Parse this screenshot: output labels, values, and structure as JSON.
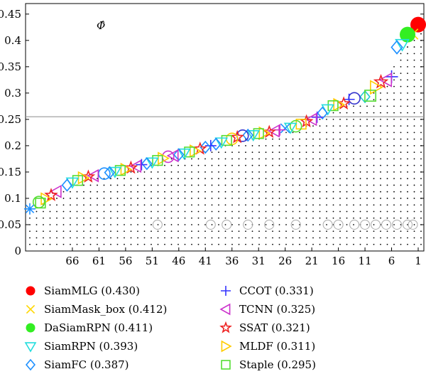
{
  "chart_data": {
    "type": "scatter",
    "title": "",
    "xlabel": "",
    "ylabel": "",
    "annotation": "Φ̂",
    "ylim": [
      0,
      0.47
    ],
    "xlim": [
      1,
      74
    ],
    "x_reversed": true,
    "y_ticks": [
      "0",
      "0.05",
      "0.1",
      "0.15",
      "0.2",
      "0.25",
      "0.3",
      "0.35",
      "0.4",
      "0.45"
    ],
    "x_ticks": [
      "66",
      "61",
      "56",
      "51",
      "46",
      "41",
      "36",
      "31",
      "26",
      "21",
      "16",
      "11",
      "6",
      "1"
    ],
    "average_line": 0.255,
    "series": [
      {
        "name": "SiamMLG (0.430)",
        "marker": "circle-filled",
        "color": "#ff0000",
        "points": [
          [
            1,
            0.43
          ]
        ]
      },
      {
        "name": "SiamMask_box (0.412)",
        "marker": "x",
        "color": "#ffd700",
        "points": [
          [
            2,
            0.412
          ]
        ]
      },
      {
        "name": "DaSiamRPN (0.411)",
        "marker": "circle-filled",
        "color": "#33ee22",
        "points": [
          [
            3,
            0.411
          ]
        ]
      },
      {
        "name": "SiamRPN (0.393)",
        "marker": "triangle-down",
        "color": "#22dddd",
        "points": [
          [
            4,
            0.393
          ]
        ]
      },
      {
        "name": "SiamFC (0.387)",
        "marker": "diamond",
        "color": "#1e90ff",
        "points": [
          [
            5,
            0.387
          ]
        ]
      },
      {
        "name": "CCOT (0.331)",
        "marker": "plus",
        "color": "#3333ff",
        "points": [
          [
            6,
            0.331
          ]
        ]
      },
      {
        "name": "TCNN (0.325)",
        "marker": "triangle-left",
        "color": "#cc33cc",
        "points": [
          [
            7,
            0.325
          ]
        ]
      },
      {
        "name": "SSAT (0.321)",
        "marker": "star",
        "color": "#ee2222",
        "points": [
          [
            8,
            0.321
          ]
        ]
      },
      {
        "name": "MLDF (0.311)",
        "marker": "triangle-right",
        "color": "#ffcc00",
        "points": [
          [
            9,
            0.311
          ]
        ]
      },
      {
        "name": "Staple (0.295)",
        "marker": "square",
        "color": "#55dd33",
        "points": [
          [
            10,
            0.295
          ]
        ]
      }
    ],
    "others": [
      {
        "x": 11,
        "y": 0.293,
        "m": "diamond",
        "c": "#22cccc"
      },
      {
        "x": 13,
        "y": 0.29,
        "m": "circle",
        "c": "#3333cc"
      },
      {
        "x": 14,
        "y": 0.288,
        "m": "plus",
        "c": "#3333ff"
      },
      {
        "x": 15,
        "y": 0.28,
        "m": "star",
        "c": "#ee2222"
      },
      {
        "x": 16,
        "y": 0.278,
        "m": "triangle-right",
        "c": "#ffcc00"
      },
      {
        "x": 17,
        "y": 0.276,
        "m": "square",
        "c": "#55dd33"
      },
      {
        "x": 18,
        "y": 0.27,
        "m": "triangle-down",
        "c": "#22dddd"
      },
      {
        "x": 19,
        "y": 0.262,
        "m": "diamond",
        "c": "#1e90ff"
      },
      {
        "x": 20,
        "y": 0.254,
        "m": "plus",
        "c": "#6633ff"
      },
      {
        "x": 21,
        "y": 0.25,
        "m": "triangle-left",
        "c": "#cc33cc"
      },
      {
        "x": 22,
        "y": 0.246,
        "m": "star",
        "c": "#ee2222"
      },
      {
        "x": 23,
        "y": 0.241,
        "m": "square",
        "c": "#ffcc00"
      },
      {
        "x": 24,
        "y": 0.237,
        "m": "circle",
        "c": "#55dd33"
      },
      {
        "x": 25,
        "y": 0.235,
        "m": "triangle-down",
        "c": "#22dddd"
      },
      {
        "x": 26,
        "y": 0.233,
        "m": "x",
        "c": "#1e90ff"
      },
      {
        "x": 27,
        "y": 0.23,
        "m": "plus",
        "c": "#cc33cc"
      },
      {
        "x": 28,
        "y": 0.228,
        "m": "triangle-left",
        "c": "#cc33cc"
      },
      {
        "x": 29,
        "y": 0.226,
        "m": "star",
        "c": "#ee2222"
      },
      {
        "x": 30,
        "y": 0.224,
        "m": "triangle-right",
        "c": "#ffcc00"
      },
      {
        "x": 31,
        "y": 0.223,
        "m": "square",
        "c": "#55dd33"
      },
      {
        "x": 32,
        "y": 0.221,
        "m": "triangle-down",
        "c": "#22dddd"
      },
      {
        "x": 33,
        "y": 0.22,
        "m": "diamond",
        "c": "#1e90ff"
      },
      {
        "x": 34,
        "y": 0.219,
        "m": "circle",
        "c": "#3333cc"
      },
      {
        "x": 35,
        "y": 0.216,
        "m": "star",
        "c": "#ee2222"
      },
      {
        "x": 36,
        "y": 0.213,
        "m": "circle",
        "c": "#ffcc00"
      },
      {
        "x": 37,
        "y": 0.21,
        "m": "square",
        "c": "#55dd33"
      },
      {
        "x": 38,
        "y": 0.207,
        "m": "triangle-down",
        "c": "#22dddd"
      },
      {
        "x": 39,
        "y": 0.203,
        "m": "diamond",
        "c": "#1e90ff"
      },
      {
        "x": 40,
        "y": 0.2,
        "m": "plus",
        "c": "#3333ff"
      },
      {
        "x": 41,
        "y": 0.197,
        "m": "diamond",
        "c": "#1e90ff"
      },
      {
        "x": 42,
        "y": 0.194,
        "m": "star",
        "c": "#ee2222"
      },
      {
        "x": 43,
        "y": 0.19,
        "m": "triangle-right",
        "c": "#ffcc00"
      },
      {
        "x": 44,
        "y": 0.188,
        "m": "square",
        "c": "#55dd33"
      },
      {
        "x": 45,
        "y": 0.186,
        "m": "triangle-down",
        "c": "#22dddd"
      },
      {
        "x": 46,
        "y": 0.183,
        "m": "diamond",
        "c": "#1e90ff"
      },
      {
        "x": 47,
        "y": 0.181,
        "m": "triangle-left",
        "c": "#cc33cc"
      },
      {
        "x": 48,
        "y": 0.179,
        "m": "circle",
        "c": "#cc33cc"
      },
      {
        "x": 49,
        "y": 0.176,
        "m": "triangle-right",
        "c": "#ffcc00"
      },
      {
        "x": 50,
        "y": 0.172,
        "m": "square",
        "c": "#55dd33"
      },
      {
        "x": 51,
        "y": 0.169,
        "m": "triangle-down",
        "c": "#22dddd"
      },
      {
        "x": 52,
        "y": 0.166,
        "m": "diamond",
        "c": "#1e90ff"
      },
      {
        "x": 53,
        "y": 0.164,
        "m": "plus",
        "c": "#3333ff"
      },
      {
        "x": 54,
        "y": 0.161,
        "m": "triangle-left",
        "c": "#cc33cc"
      },
      {
        "x": 55,
        "y": 0.158,
        "m": "star",
        "c": "#ee2222"
      },
      {
        "x": 56,
        "y": 0.155,
        "m": "triangle-right",
        "c": "#ffcc00"
      },
      {
        "x": 57,
        "y": 0.153,
        "m": "square",
        "c": "#55dd33"
      },
      {
        "x": 58,
        "y": 0.151,
        "m": "triangle-down",
        "c": "#22dddd"
      },
      {
        "x": 59,
        "y": 0.149,
        "m": "diamond",
        "c": "#1e90ff"
      },
      {
        "x": 60,
        "y": 0.147,
        "m": "circle",
        "c": "#1e90ff"
      },
      {
        "x": 62,
        "y": 0.143,
        "m": "triangle-left",
        "c": "#cc33cc"
      },
      {
        "x": 63,
        "y": 0.141,
        "m": "star",
        "c": "#ee2222"
      },
      {
        "x": 64,
        "y": 0.139,
        "m": "triangle-right",
        "c": "#ffcc00"
      },
      {
        "x": 65,
        "y": 0.134,
        "m": "square",
        "c": "#55dd33"
      },
      {
        "x": 66,
        "y": 0.131,
        "m": "triangle-down",
        "c": "#22dddd"
      },
      {
        "x": 67,
        "y": 0.125,
        "m": "diamond",
        "c": "#1e90ff"
      },
      {
        "x": 69,
        "y": 0.113,
        "m": "triangle-left",
        "c": "#cc33cc"
      },
      {
        "x": 70,
        "y": 0.106,
        "m": "star",
        "c": "#ee2222"
      },
      {
        "x": 71,
        "y": 0.099,
        "m": "triangle-right",
        "c": "#ffcc00"
      },
      {
        "x": 72,
        "y": 0.091,
        "m": "square",
        "c": "#55dd33"
      },
      {
        "x": 72.3,
        "y": 0.093,
        "m": "circle",
        "c": "#55dd33"
      },
      {
        "x": 74,
        "y": 0.08,
        "m": "asterisk",
        "c": "#1e90ff"
      }
    ],
    "gray_circles": [
      2,
      3,
      5,
      7,
      9,
      11,
      13,
      16,
      18,
      24,
      29,
      33,
      37,
      40,
      50
    ],
    "gray_circle_y": 0.05
  }
}
